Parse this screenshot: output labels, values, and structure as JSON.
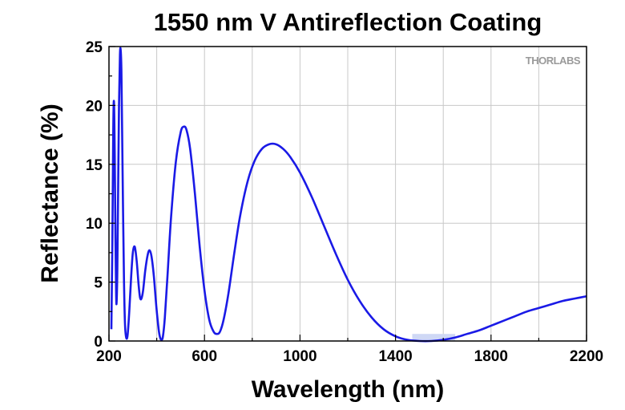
{
  "chart_data": {
    "type": "line",
    "title": "1550 nm V Antireflection Coating",
    "xlabel": "Wavelength (nm)",
    "ylabel": "Reflectance (%)",
    "xlim": [
      200,
      2200
    ],
    "ylim": [
      0,
      25
    ],
    "xticks": [
      200,
      600,
      1000,
      1400,
      1800,
      2200
    ],
    "yticks": [
      0,
      5,
      10,
      15,
      20,
      25
    ],
    "grid": true,
    "watermark": "THORLABS",
    "colors": {
      "line": "#1a1ae6",
      "highlight": "#cfd8f5"
    },
    "highlight_band": {
      "x": [
        1470,
        1650
      ],
      "y": [
        0,
        0.6
      ]
    },
    "series": [
      {
        "values": [
          [
            210,
            1.0
          ],
          [
            214,
            8.0
          ],
          [
            218,
            18.0
          ],
          [
            221,
            20.3
          ],
          [
            224,
            16.0
          ],
          [
            227,
            9.0
          ],
          [
            230,
            4.0
          ],
          [
            232,
            3.3
          ],
          [
            235,
            6.0
          ],
          [
            238,
            12.0
          ],
          [
            242,
            20.0
          ],
          [
            246,
            24.3
          ],
          [
            249,
            24.7
          ],
          [
            252,
            23.0
          ],
          [
            255,
            18.0
          ],
          [
            259,
            11.0
          ],
          [
            263,
            5.0
          ],
          [
            267,
            1.5
          ],
          [
            272,
            0.3
          ],
          [
            278,
            0.5
          ],
          [
            285,
            2.5
          ],
          [
            293,
            5.5
          ],
          [
            300,
            7.5
          ],
          [
            308,
            8.0
          ],
          [
            316,
            6.8
          ],
          [
            324,
            4.8
          ],
          [
            330,
            3.7
          ],
          [
            336,
            3.6
          ],
          [
            343,
            4.3
          ],
          [
            352,
            6.0
          ],
          [
            362,
            7.3
          ],
          [
            370,
            7.7
          ],
          [
            378,
            7.2
          ],
          [
            388,
            5.5
          ],
          [
            398,
            3.0
          ],
          [
            408,
            1.0
          ],
          [
            414,
            0.3
          ],
          [
            420,
            0.1
          ],
          [
            426,
            0.4
          ],
          [
            434,
            2.0
          ],
          [
            445,
            5.5
          ],
          [
            460,
            10.5
          ],
          [
            480,
            15.2
          ],
          [
            500,
            17.7
          ],
          [
            513,
            18.2
          ],
          [
            525,
            17.9
          ],
          [
            540,
            16.3
          ],
          [
            560,
            12.5
          ],
          [
            580,
            8.0
          ],
          [
            600,
            4.3
          ],
          [
            620,
            1.8
          ],
          [
            638,
            0.8
          ],
          [
            652,
            0.6
          ],
          [
            665,
            0.8
          ],
          [
            680,
            1.8
          ],
          [
            700,
            4.0
          ],
          [
            725,
            7.5
          ],
          [
            750,
            10.7
          ],
          [
            780,
            13.5
          ],
          [
            810,
            15.3
          ],
          [
            840,
            16.3
          ],
          [
            870,
            16.7
          ],
          [
            900,
            16.7
          ],
          [
            930,
            16.3
          ],
          [
            960,
            15.6
          ],
          [
            1000,
            14.3
          ],
          [
            1050,
            12.2
          ],
          [
            1100,
            9.8
          ],
          [
            1150,
            7.4
          ],
          [
            1200,
            5.2
          ],
          [
            1250,
            3.4
          ],
          [
            1300,
            2.0
          ],
          [
            1350,
            1.0
          ],
          [
            1400,
            0.4
          ],
          [
            1450,
            0.1
          ],
          [
            1500,
            0.0
          ],
          [
            1550,
            0.0
          ],
          [
            1600,
            0.1
          ],
          [
            1650,
            0.3
          ],
          [
            1700,
            0.6
          ],
          [
            1750,
            0.9
          ],
          [
            1800,
            1.3
          ],
          [
            1850,
            1.7
          ],
          [
            1900,
            2.1
          ],
          [
            1950,
            2.5
          ],
          [
            2000,
            2.8
          ],
          [
            2050,
            3.1
          ],
          [
            2100,
            3.4
          ],
          [
            2150,
            3.6
          ],
          [
            2200,
            3.8
          ]
        ]
      }
    ]
  }
}
